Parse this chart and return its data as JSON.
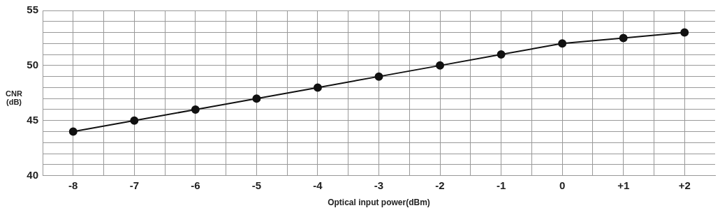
{
  "chart_data": {
    "type": "line",
    "xlabel": "Optical input power(dBm)",
    "ylabel": "CNR (dB)",
    "x": [
      -8,
      -7,
      -6,
      -5,
      -4,
      -3,
      -2,
      -1,
      0,
      1,
      2
    ],
    "series": [
      {
        "color": "#111111",
        "values": [
          44,
          45,
          46,
          47,
          48,
          49,
          50,
          51,
          52,
          52.5,
          53
        ]
      }
    ],
    "xlim": [
      -8.5,
      2.5
    ],
    "xticks": [
      -8,
      {
        "value": -7.5,
        "label": null
      },
      -7,
      {
        "value": -6.5,
        "label": null
      },
      -6,
      {
        "value": -5.5,
        "label": null
      },
      -5,
      {
        "value": -4.5,
        "label": null
      },
      -4,
      {
        "value": -3.5,
        "label": null
      },
      -3,
      {
        "value": -2.5,
        "label": null
      },
      -2,
      {
        "value": -1.5,
        "label": null
      },
      -1,
      {
        "value": -0.5,
        "label": null
      },
      0,
      {
        "value": 0.5,
        "label": null
      },
      {
        "value": 1,
        "label": "+1"
      },
      {
        "value": 1.5,
        "label": null
      },
      {
        "value": 2,
        "label": "+2"
      }
    ],
    "ylim": [
      40,
      55
    ],
    "yticks": [
      40,
      {
        "value": 41,
        "label": null
      },
      {
        "value": 42,
        "label": null
      },
      {
        "value": 43,
        "label": null
      },
      {
        "value": 44,
        "label": null
      },
      45,
      {
        "value": 46,
        "label": null
      },
      {
        "value": 47,
        "label": null
      },
      {
        "value": 48,
        "label": null
      },
      {
        "value": 49,
        "label": null
      },
      50,
      {
        "value": 51,
        "label": null
      },
      {
        "value": 52,
        "label": null
      },
      {
        "value": 53,
        "label": null
      },
      {
        "value": 54,
        "label": null
      },
      55
    ],
    "grid": true,
    "legend": false,
    "marker": "circle",
    "line_style": "solid"
  }
}
